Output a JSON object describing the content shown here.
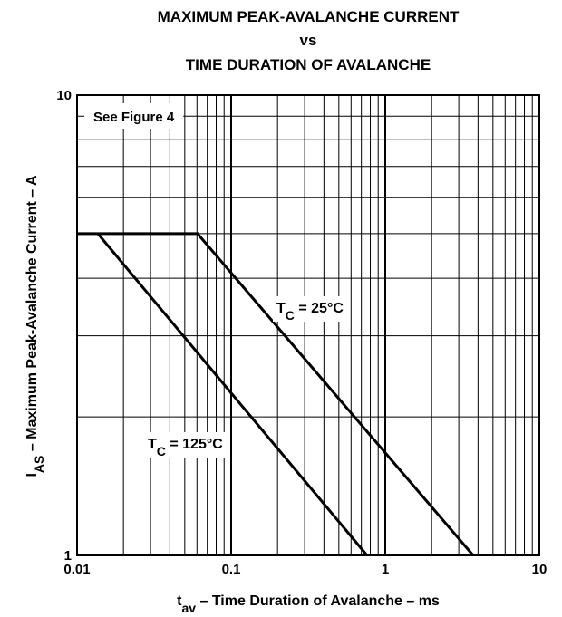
{
  "chart_data": {
    "type": "line",
    "title": [
      "MAXIMUM PEAK-AVALANCHE CURRENT",
      "vs",
      "TIME DURATION OF AVALANCHE"
    ],
    "x_label": {
      "base": "t",
      "sub": "av",
      "rest": " – Time Duration of Avalanche – ms"
    },
    "y_label": {
      "base": "I",
      "sub": "AS",
      "rest": " – Maximum Peak-Avalanche Current – A"
    },
    "annotation": "See Figure 4",
    "log_x": true,
    "log_y": true,
    "grid": true,
    "xlim": [
      0.01,
      10
    ],
    "ylim": [
      1,
      10
    ],
    "xticks": [
      0.01,
      0.1,
      1,
      10
    ],
    "yticks": [
      1,
      10
    ],
    "xminorticks": [
      0.02,
      0.03,
      0.04,
      0.05,
      0.06,
      0.07,
      0.08,
      0.09,
      0.2,
      0.3,
      0.4,
      0.5,
      0.6,
      0.7,
      0.8,
      0.9,
      2,
      3,
      4,
      5,
      6,
      7,
      8,
      9
    ],
    "yminorticks": [
      2,
      3,
      4,
      5,
      6,
      7,
      8,
      9
    ],
    "series": [
      {
        "label": {
          "base": "T",
          "sub": "C",
          "rest": " = 25°C"
        },
        "color": "#000000",
        "x": [
          0.01,
          0.0605,
          3.72
        ],
        "values": [
          5,
          5,
          1
        ]
      },
      {
        "label": {
          "base": "T",
          "sub": "C",
          "rest": " = 125°C"
        },
        "color": "#000000",
        "x": [
          0.01365,
          0.762
        ],
        "values": [
          5,
          1
        ]
      }
    ]
  }
}
